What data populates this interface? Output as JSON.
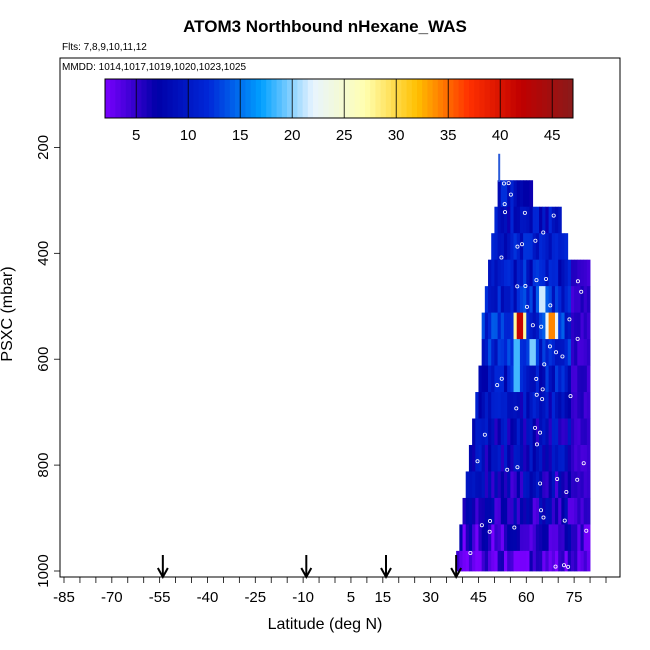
{
  "chart_data": {
    "type": "heatmap",
    "title": "ATOM3 Northbound nHexane_WAS",
    "subtitle_flights": "Flts: 7,8,9,10,11,12",
    "subtitle_dates": "MMDD: 1014,1017,1019,1020,1023,1025",
    "xlabel": "Latitude (deg N)",
    "ylabel": "PSXC (mbar)",
    "xlim": [
      -85,
      85
    ],
    "ylim": [
      1000,
      50
    ],
    "x_ticks": [
      -85,
      -70,
      -55,
      -40,
      -25,
      -10,
      5,
      15,
      30,
      45,
      60,
      75
    ],
    "y_ticks": [
      200,
      400,
      600,
      800,
      1000
    ],
    "colorbar": {
      "range": [
        2,
        47
      ],
      "ticks": [
        5,
        10,
        15,
        20,
        25,
        30,
        35,
        40,
        45
      ],
      "stops": [
        "#7a00ff",
        "#0000a8",
        "#0028d8",
        "#00a0ff",
        "#e8f4ff",
        "#ffffb0",
        "#ffc000",
        "#ff3000",
        "#c00000",
        "#8a1a1a"
      ]
    },
    "arrows_latitude": [
      -54,
      -9,
      16,
      38
    ],
    "profile_rows": [
      {
        "p_top": 262,
        "p_bot": 312,
        "lat_min": 51,
        "lat_max": 62,
        "base": 9
      },
      {
        "p_top": 312,
        "p_bot": 362,
        "lat_min": 50,
        "lat_max": 71,
        "base": 9
      },
      {
        "p_top": 362,
        "p_bot": 412,
        "lat_min": 49,
        "lat_max": 73,
        "base": 10
      },
      {
        "p_top": 412,
        "p_bot": 462,
        "lat_min": 48,
        "lat_max": 80,
        "base": 10
      },
      {
        "p_top": 462,
        "p_bot": 512,
        "lat_min": 47,
        "lat_max": 80,
        "base": 11
      },
      {
        "p_top": 512,
        "p_bot": 562,
        "lat_min": 46,
        "lat_max": 80,
        "base": 12
      },
      {
        "p_top": 562,
        "p_bot": 612,
        "lat_min": 46,
        "lat_max": 80,
        "base": 11
      },
      {
        "p_top": 612,
        "p_bot": 662,
        "lat_min": 45,
        "lat_max": 80,
        "base": 10
      },
      {
        "p_top": 662,
        "p_bot": 712,
        "lat_min": 44,
        "lat_max": 80,
        "base": 9
      },
      {
        "p_top": 712,
        "p_bot": 762,
        "lat_min": 43,
        "lat_max": 80,
        "base": 8
      },
      {
        "p_top": 762,
        "p_bot": 812,
        "lat_min": 42,
        "lat_max": 80,
        "base": 8
      },
      {
        "p_top": 812,
        "p_bot": 862,
        "lat_min": 41,
        "lat_max": 80,
        "base": 7
      },
      {
        "p_top": 862,
        "p_bot": 912,
        "lat_min": 40,
        "lat_max": 80,
        "base": 6
      },
      {
        "p_top": 912,
        "p_bot": 962,
        "lat_min": 39,
        "lat_max": 80,
        "base": 5
      },
      {
        "p_top": 962,
        "p_bot": 1000,
        "lat_min": 38,
        "lat_max": 80,
        "base": 4
      }
    ],
    "hotspots": [
      {
        "lat": 58,
        "p": 535,
        "value": 44
      },
      {
        "lat": 68,
        "p": 535,
        "value": 36
      },
      {
        "lat": 65,
        "p": 480,
        "value": 24
      },
      {
        "lat": 62,
        "p": 580,
        "value": 22
      },
      {
        "lat": 57,
        "p": 570,
        "value": 28
      },
      {
        "lat": 57,
        "p": 650,
        "value": 24
      },
      {
        "lat": 54,
        "p": 420,
        "value": 18
      },
      {
        "lat": 53,
        "p": 295,
        "value": 14
      }
    ]
  }
}
